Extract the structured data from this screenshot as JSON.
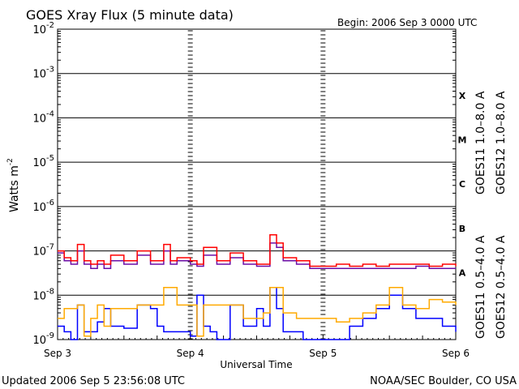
{
  "chart_data": {
    "type": "line",
    "title": "GOES Xray Flux (5 minute data)",
    "begin_label": "Begin:  2006 Sep 3 0000 UTC",
    "xlabel": "Universal Time",
    "ylabel": "Watts m",
    "ylabel_exponent": "-2",
    "y_scale": "log",
    "ylim": [
      1e-09,
      0.01
    ],
    "y_ticks": [
      {
        "base": "10",
        "exp": "-2",
        "value": 0.01
      },
      {
        "base": "10",
        "exp": "-3",
        "value": 0.001
      },
      {
        "base": "10",
        "exp": "-4",
        "value": 0.0001
      },
      {
        "base": "10",
        "exp": "-5",
        "value": 1e-05
      },
      {
        "base": "10",
        "exp": "-6",
        "value": 1e-06
      },
      {
        "base": "10",
        "exp": "-7",
        "value": 1e-07
      },
      {
        "base": "10",
        "exp": "-8",
        "value": 1e-08
      },
      {
        "base": "10",
        "exp": "-9",
        "value": 1e-09
      }
    ],
    "x_ticks": [
      "Sep 3",
      "Sep 4",
      "Sep 5",
      "Sep 6"
    ],
    "xlim": [
      0,
      3
    ],
    "class_labels": [
      {
        "label": "X",
        "value": 0.00032
      },
      {
        "label": "M",
        "value": 3.2e-05
      },
      {
        "label": "C",
        "value": 3.2e-06
      },
      {
        "label": "B",
        "value": 3.2e-07
      },
      {
        "label": "A",
        "value": 3.2e-08
      }
    ],
    "grid": "horizontal at decades",
    "legend": [
      {
        "name": "GOES11 1.0–8.0 A",
        "color": "#6a0fa8"
      },
      {
        "name": "GOES12 1.0–8.0 A",
        "color": "#ff0000"
      },
      {
        "name": "GOES11 0.5–4.0 A",
        "color": "#ffaa00"
      },
      {
        "name": "GOES12 0.5–4.0 A",
        "color": "#0000ff"
      }
    ],
    "series": [
      {
        "name": "GOES12 0.5–4.0 A",
        "color": "#0000ff",
        "x": [
          0,
          0.05,
          0.1,
          0.15,
          0.2,
          0.3,
          0.35,
          0.4,
          0.5,
          0.6,
          0.7,
          0.75,
          0.8,
          0.9,
          1.0,
          1.05,
          1.1,
          1.15,
          1.2,
          1.3,
          1.4,
          1.5,
          1.55,
          1.6,
          1.65,
          1.7,
          1.8,
          1.85,
          1.9,
          2.0,
          2.1,
          2.2,
          2.3,
          2.4,
          2.5,
          2.6,
          2.7,
          2.8,
          2.9,
          3.0
        ],
        "values": [
          2e-09,
          1.5e-09,
          1e-09,
          6e-09,
          1.5e-09,
          2.5e-09,
          5e-09,
          2e-09,
          1.8e-09,
          6e-09,
          5e-09,
          2e-09,
          1.5e-09,
          1.5e-09,
          1.2e-09,
          1e-08,
          2e-09,
          1.5e-09,
          1e-09,
          6e-09,
          2e-09,
          5e-09,
          2e-09,
          1.5e-08,
          5e-09,
          1.5e-09,
          1.5e-09,
          1e-09,
          1e-09,
          1e-09,
          1e-09,
          2e-09,
          3e-09,
          5e-09,
          1e-08,
          5e-09,
          3e-09,
          3e-09,
          2e-09,
          1.5e-09
        ]
      },
      {
        "name": "GOES11 0.5–4.0 A",
        "color": "#ffaa00",
        "x": [
          0,
          0.05,
          0.1,
          0.15,
          0.2,
          0.25,
          0.3,
          0.35,
          0.4,
          0.5,
          0.6,
          0.7,
          0.8,
          0.9,
          1.0,
          1.05,
          1.1,
          1.2,
          1.3,
          1.4,
          1.5,
          1.55,
          1.6,
          1.7,
          1.8,
          1.9,
          2.0,
          2.1,
          2.2,
          2.3,
          2.4,
          2.5,
          2.6,
          2.7,
          2.8,
          2.9,
          3.0
        ],
        "values": [
          3e-09,
          5e-09,
          5e-09,
          6e-09,
          1.2e-09,
          3e-09,
          6e-09,
          2e-09,
          5e-09,
          5e-09,
          6e-09,
          6e-09,
          1.5e-08,
          6e-09,
          6e-09,
          1.2e-09,
          6e-09,
          6e-09,
          6e-09,
          3e-09,
          3e-09,
          4e-09,
          1.5e-08,
          4e-09,
          3e-09,
          3e-09,
          3e-09,
          2.5e-09,
          3e-09,
          4e-09,
          6e-09,
          1.5e-08,
          6e-09,
          5e-09,
          8e-09,
          7e-09,
          6e-09
        ]
      },
      {
        "name": "GOES11 1.0–8.0 A",
        "color": "#6a0fa8",
        "x": [
          0,
          0.05,
          0.1,
          0.15,
          0.2,
          0.25,
          0.3,
          0.35,
          0.4,
          0.5,
          0.6,
          0.7,
          0.8,
          0.85,
          0.9,
          1.0,
          1.05,
          1.1,
          1.2,
          1.3,
          1.4,
          1.5,
          1.55,
          1.6,
          1.65,
          1.7,
          1.8,
          1.9,
          2.0,
          2.1,
          2.2,
          2.3,
          2.4,
          2.5,
          2.6,
          2.7,
          2.8,
          2.9,
          3.0
        ],
        "values": [
          9e-08,
          6e-08,
          5e-08,
          1e-07,
          5e-08,
          4e-08,
          5e-08,
          4e-08,
          6e-08,
          5e-08,
          8e-08,
          5e-08,
          1e-07,
          5e-08,
          6e-08,
          5e-08,
          4.5e-08,
          8e-08,
          5e-08,
          7e-08,
          5e-08,
          4.5e-08,
          4.5e-08,
          1.5e-07,
          1.2e-07,
          6e-08,
          5e-08,
          4e-08,
          4e-08,
          4e-08,
          4e-08,
          4e-08,
          4e-08,
          4e-08,
          4e-08,
          4.5e-08,
          4e-08,
          4e-08,
          4e-08
        ]
      },
      {
        "name": "GOES12 1.0–8.0 A",
        "color": "#ff0000",
        "x": [
          0,
          0.05,
          0.1,
          0.15,
          0.2,
          0.25,
          0.3,
          0.35,
          0.4,
          0.5,
          0.6,
          0.7,
          0.8,
          0.85,
          0.9,
          1.0,
          1.05,
          1.1,
          1.2,
          1.3,
          1.4,
          1.5,
          1.55,
          1.6,
          1.65,
          1.7,
          1.8,
          1.9,
          2.0,
          2.1,
          2.2,
          2.3,
          2.4,
          2.5,
          2.6,
          2.7,
          2.8,
          2.9,
          3.0
        ],
        "values": [
          1e-07,
          7e-08,
          6e-08,
          1.4e-07,
          6e-08,
          5e-08,
          6e-08,
          5e-08,
          8e-08,
          6e-08,
          1e-07,
          6e-08,
          1.4e-07,
          6e-08,
          7e-08,
          6e-08,
          5e-08,
          1.2e-07,
          6e-08,
          9e-08,
          6e-08,
          5e-08,
          5e-08,
          2.3e-07,
          1.5e-07,
          7e-08,
          6e-08,
          4.5e-08,
          4.5e-08,
          5e-08,
          4.5e-08,
          5e-08,
          4.5e-08,
          5e-08,
          5e-08,
          5e-08,
          4.5e-08,
          5e-08,
          4.5e-08
        ]
      }
    ]
  },
  "footer": {
    "updated": "Updated 2006 Sep  5 23:56:08 UTC",
    "source": "NOAA/SEC Boulder, CO USA"
  }
}
